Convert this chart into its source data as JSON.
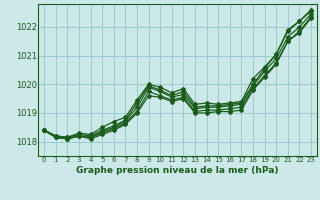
{
  "title": "Graphe pression niveau de la mer (hPa)",
  "bg_color": "#cce8e8",
  "grid_color": "#99cccc",
  "line_color": "#1a5c1a",
  "xlim": [
    -0.5,
    23.5
  ],
  "ylim": [
    1017.5,
    1022.8
  ],
  "yticks": [
    1018,
    1019,
    1020,
    1021,
    1022
  ],
  "xticks": [
    0,
    1,
    2,
    3,
    4,
    5,
    6,
    7,
    8,
    9,
    10,
    11,
    12,
    13,
    14,
    15,
    16,
    17,
    18,
    19,
    20,
    21,
    22,
    23
  ],
  "series": [
    [
      1018.4,
      1018.2,
      1018.15,
      1018.25,
      1018.2,
      1018.4,
      1018.55,
      1018.75,
      1019.35,
      1019.95,
      1019.8,
      1019.6,
      1019.75,
      1019.2,
      1019.25,
      1019.25,
      1019.3,
      1019.35,
      1020.0,
      1020.55,
      1021.05,
      1021.85,
      1022.2,
      1022.55
    ],
    [
      1018.4,
      1018.15,
      1018.1,
      1018.2,
      1018.15,
      1018.35,
      1018.5,
      1018.7,
      1019.2,
      1019.9,
      1019.75,
      1019.55,
      1019.65,
      1019.15,
      1019.2,
      1019.2,
      1019.25,
      1019.3,
      1019.95,
      1020.45,
      1020.9,
      1021.65,
      1022.0,
      1022.45
    ],
    [
      1018.4,
      1018.15,
      1018.1,
      1018.2,
      1018.15,
      1018.3,
      1018.45,
      1018.65,
      1019.05,
      1019.75,
      1019.6,
      1019.45,
      1019.55,
      1019.05,
      1019.1,
      1019.1,
      1019.15,
      1019.2,
      1019.85,
      1020.3,
      1020.75,
      1021.5,
      1021.85,
      1022.35
    ],
    [
      1018.4,
      1018.15,
      1018.1,
      1018.2,
      1018.1,
      1018.25,
      1018.4,
      1018.6,
      1019.0,
      1019.6,
      1019.55,
      1019.4,
      1019.5,
      1019.0,
      1019.0,
      1019.05,
      1019.05,
      1019.1,
      1019.8,
      1020.25,
      1020.7,
      1021.5,
      1021.8,
      1022.3
    ]
  ],
  "series_upper": [
    1018.4,
    1018.2,
    1018.15,
    1018.3,
    1018.25,
    1018.5,
    1018.7,
    1018.85,
    1019.45,
    1020.0,
    1019.9,
    1019.7,
    1019.85,
    1019.3,
    1019.35,
    1019.3,
    1019.35,
    1019.4,
    1020.2,
    1020.6,
    1021.05,
    1021.9,
    1022.2,
    1022.6
  ]
}
